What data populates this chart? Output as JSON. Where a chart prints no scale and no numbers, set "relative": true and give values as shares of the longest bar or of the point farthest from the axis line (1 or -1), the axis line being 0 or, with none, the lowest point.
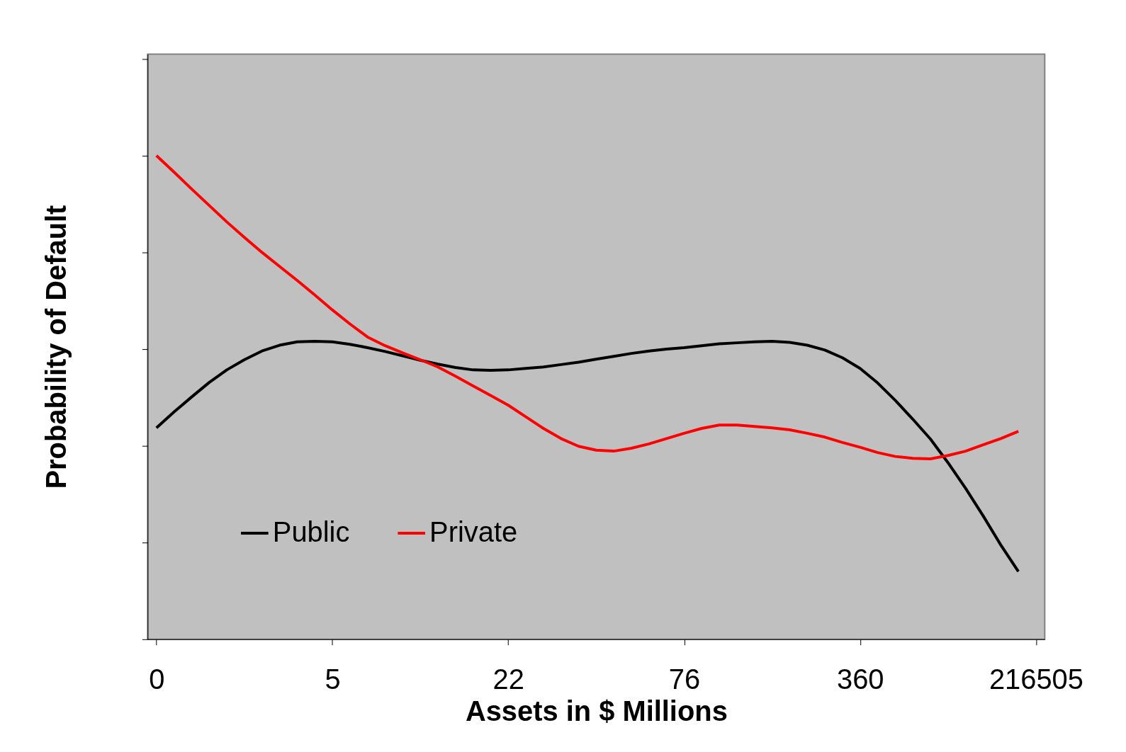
{
  "chart_data": {
    "type": "line",
    "relative": true,
    "xlabel": "Assets in $ Millions",
    "ylabel": "Probability of Default",
    "categories": [
      "0",
      null,
      null,
      null,
      null,
      null,
      null,
      null,
      null,
      null,
      "5",
      null,
      null,
      null,
      null,
      null,
      null,
      null,
      null,
      null,
      "22",
      null,
      null,
      null,
      null,
      null,
      null,
      null,
      null,
      null,
      "76",
      null,
      null,
      null,
      null,
      null,
      null,
      null,
      null,
      null,
      "360",
      null,
      null,
      null,
      null,
      null,
      null,
      null,
      null,
      null,
      "216505"
    ],
    "series": [
      {
        "name": "Public",
        "color": "#000000",
        "values": [
          0.437,
          0.47,
          0.501,
          0.531,
          0.557,
          0.578,
          0.596,
          0.608,
          0.615,
          0.616,
          0.615,
          0.61,
          0.603,
          0.595,
          0.586,
          0.577,
          0.569,
          0.562,
          0.557,
          0.556,
          0.557,
          0.56,
          0.563,
          0.568,
          0.573,
          0.579,
          0.585,
          0.591,
          0.596,
          0.6,
          0.603,
          0.607,
          0.611,
          0.613,
          0.615,
          0.616,
          0.614,
          0.608,
          0.598,
          0.582,
          0.56,
          0.53,
          0.494,
          0.455,
          0.414,
          0.365,
          0.312,
          0.255,
          0.195,
          0.14,
          null
        ]
      },
      {
        "name": "Private",
        "color": "#ff0000",
        "values": [
          1.0,
          0.966,
          0.931,
          0.897,
          0.863,
          0.831,
          0.8,
          0.771,
          0.742,
          0.712,
          0.681,
          0.652,
          0.625,
          0.607,
          0.592,
          0.578,
          0.563,
          0.544,
          0.524,
          0.504,
          0.484,
          0.46,
          0.436,
          0.415,
          0.399,
          0.391,
          0.389,
          0.395,
          0.404,
          0.415,
          0.426,
          0.436,
          0.443,
          0.443,
          0.44,
          0.437,
          0.433,
          0.426,
          0.418,
          0.407,
          0.397,
          0.386,
          0.378,
          0.374,
          0.373,
          0.38,
          0.389,
          0.402,
          0.415,
          0.43,
          null
        ]
      }
    ],
    "legend": "bottom left",
    "grid": false,
    "marker": "none",
    "line_style": "solid"
  }
}
